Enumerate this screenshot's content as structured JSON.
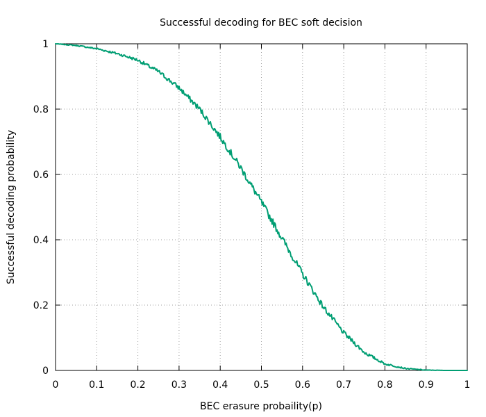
{
  "chart_data": {
    "type": "line",
    "title": "Successful decoding for BEC soft decision",
    "xlabel": "BEC erasure probaility(p)",
    "ylabel": "Successful decoding probability",
    "xlim": [
      0,
      1
    ],
    "ylim": [
      0,
      1
    ],
    "x_ticks": [
      0,
      0.1,
      0.2,
      0.3,
      0.4,
      0.5,
      0.6,
      0.7,
      0.8,
      0.9,
      1
    ],
    "x_tick_labels": [
      "0",
      "0.1",
      "0.2",
      "0.3",
      "0.4",
      "0.5",
      "0.6",
      "0.7",
      "0.8",
      "0.9",
      "1"
    ],
    "y_ticks": [
      0,
      0.2,
      0.4,
      0.6,
      0.8,
      1
    ],
    "y_tick_labels": [
      "0",
      "0.2",
      "0.4",
      "0.6",
      "0.8",
      "1"
    ],
    "grid": true,
    "legend": "none",
    "series": [
      {
        "color": "#009e73",
        "x": [
          0,
          0.05,
          0.1,
          0.15,
          0.2,
          0.25,
          0.3,
          0.35,
          0.4,
          0.45,
          0.5,
          0.55,
          0.6,
          0.65,
          0.7,
          0.75,
          0.8,
          0.85,
          0.9,
          0.95,
          1
        ],
        "y": [
          1.0,
          0.995,
          0.985,
          0.97,
          0.95,
          0.915,
          0.865,
          0.8,
          0.715,
          0.62,
          0.515,
          0.405,
          0.295,
          0.195,
          0.115,
          0.055,
          0.02,
          0.006,
          0.001,
          0.0,
          0.0
        ]
      }
    ]
  }
}
